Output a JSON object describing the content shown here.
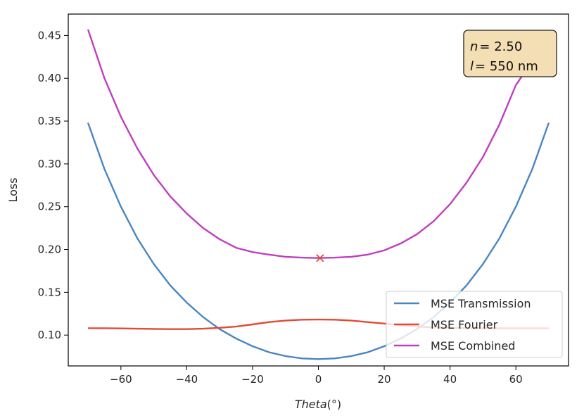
{
  "chart_data": {
    "type": "line",
    "title": "",
    "xlabel_italic": "Theta",
    "xlabel_suffix": "(°)",
    "ylabel": "Loss",
    "xlim": [
      -76,
      76
    ],
    "ylim": [
      0.064,
      0.475
    ],
    "xticks": [
      -60,
      -40,
      -20,
      0,
      20,
      40,
      60
    ],
    "yticks": [
      0.1,
      0.15,
      0.2,
      0.25,
      0.3,
      0.35,
      0.4,
      0.45
    ],
    "grid": false,
    "legend_position": "lower-right",
    "x": [
      -70,
      -65,
      -60,
      -55,
      -50,
      -45,
      -40,
      -35,
      -30,
      -25,
      -20,
      -15,
      -10,
      -5,
      0,
      5,
      10,
      15,
      20,
      25,
      30,
      35,
      40,
      45,
      50,
      55,
      60,
      65,
      70
    ],
    "series": [
      {
        "name": "MSE Transmission",
        "color": "#4a86c0",
        "values": [
          0.348,
          0.294,
          0.25,
          0.213,
          0.183,
          0.158,
          0.138,
          0.121,
          0.107,
          0.096,
          0.087,
          0.08,
          0.0755,
          0.0728,
          0.072,
          0.0728,
          0.0755,
          0.08,
          0.087,
          0.096,
          0.107,
          0.121,
          0.138,
          0.158,
          0.183,
          0.213,
          0.25,
          0.294,
          0.348
        ]
      },
      {
        "name": "MSE Fourier",
        "color": "#e24a33",
        "values": [
          0.108,
          0.108,
          0.1078,
          0.1075,
          0.1072,
          0.107,
          0.107,
          0.1075,
          0.1085,
          0.11,
          0.1125,
          0.1152,
          0.117,
          0.118,
          0.1182,
          0.118,
          0.117,
          0.1152,
          0.1135,
          0.1115,
          0.11,
          0.109,
          0.1085,
          0.108,
          0.108,
          0.108,
          0.108,
          0.108,
          0.108
        ]
      },
      {
        "name": "MSE Combined",
        "color": "#bf3fbf",
        "values": [
          0.457,
          0.4,
          0.355,
          0.318,
          0.287,
          0.262,
          0.242,
          0.225,
          0.212,
          0.202,
          0.197,
          0.194,
          0.1915,
          0.1905,
          0.19,
          0.1905,
          0.1915,
          0.194,
          0.199,
          0.207,
          0.218,
          0.233,
          0.253,
          0.278,
          0.308,
          0.346,
          0.392,
          0.42,
          0.44
        ]
      }
    ],
    "marker": {
      "x": 0.5,
      "y": 0.19,
      "symbol": "x",
      "color": "#e24a33"
    },
    "annotation": {
      "n_var": "n",
      "n_value": "= 2.50",
      "l_var": "l",
      "l_value": "= 550 nm",
      "background": "#f4deb3",
      "position": "top-right"
    }
  }
}
